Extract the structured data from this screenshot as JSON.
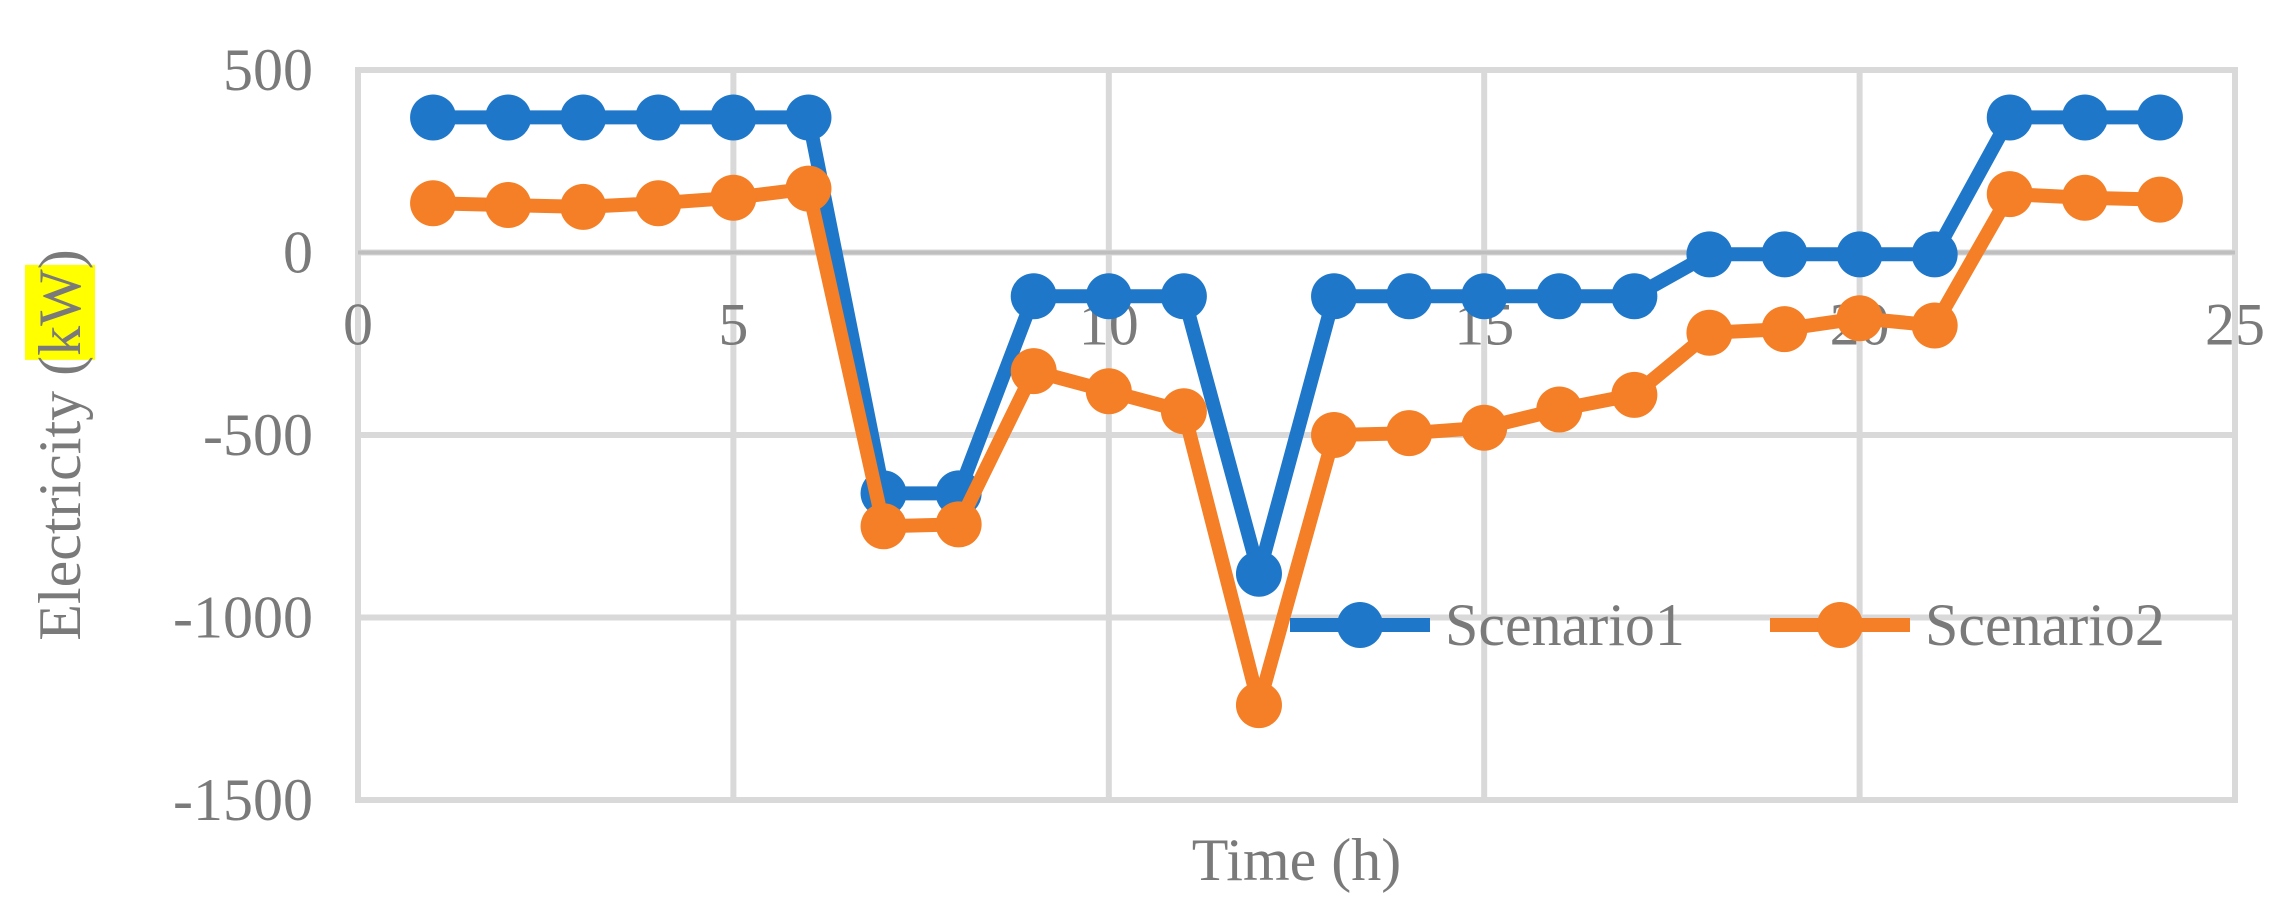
{
  "chart_data": {
    "type": "line",
    "title": "",
    "xlabel": "Time (h)",
    "ylabel": {
      "prefix": "Electricity (",
      "highlighted": "kW",
      "suffix": ")"
    },
    "xlim": [
      0,
      25
    ],
    "ylim": [
      -1500,
      500
    ],
    "x_ticks": [
      0,
      5,
      10,
      15,
      20,
      25
    ],
    "y_ticks": [
      500,
      0,
      -500,
      -1000,
      -1500
    ],
    "grid": true,
    "legend_position": "lower-right (inside plot)",
    "highlight_color": "#ffff00",
    "x": [
      1,
      2,
      3,
      4,
      5,
      6,
      7,
      8,
      9,
      10,
      11,
      12,
      13,
      14,
      15,
      16,
      17,
      18,
      19,
      20,
      21,
      22,
      23,
      24
    ],
    "series": [
      {
        "name": "Scenario1",
        "color": "#1f77c9",
        "values": [
          370,
          370,
          370,
          370,
          370,
          370,
          -660,
          -660,
          -120,
          -120,
          -120,
          -880,
          -120,
          -120,
          -120,
          -120,
          -120,
          -5,
          -5,
          -5,
          -5,
          370,
          370,
          370
        ]
      },
      {
        "name": "Scenario2",
        "color": "#f47f26",
        "values": [
          135,
          130,
          125,
          135,
          150,
          175,
          -750,
          -745,
          -325,
          -380,
          -435,
          -1240,
          -500,
          -495,
          -480,
          -430,
          -390,
          -220,
          -210,
          -180,
          -200,
          160,
          150,
          145
        ]
      }
    ]
  }
}
